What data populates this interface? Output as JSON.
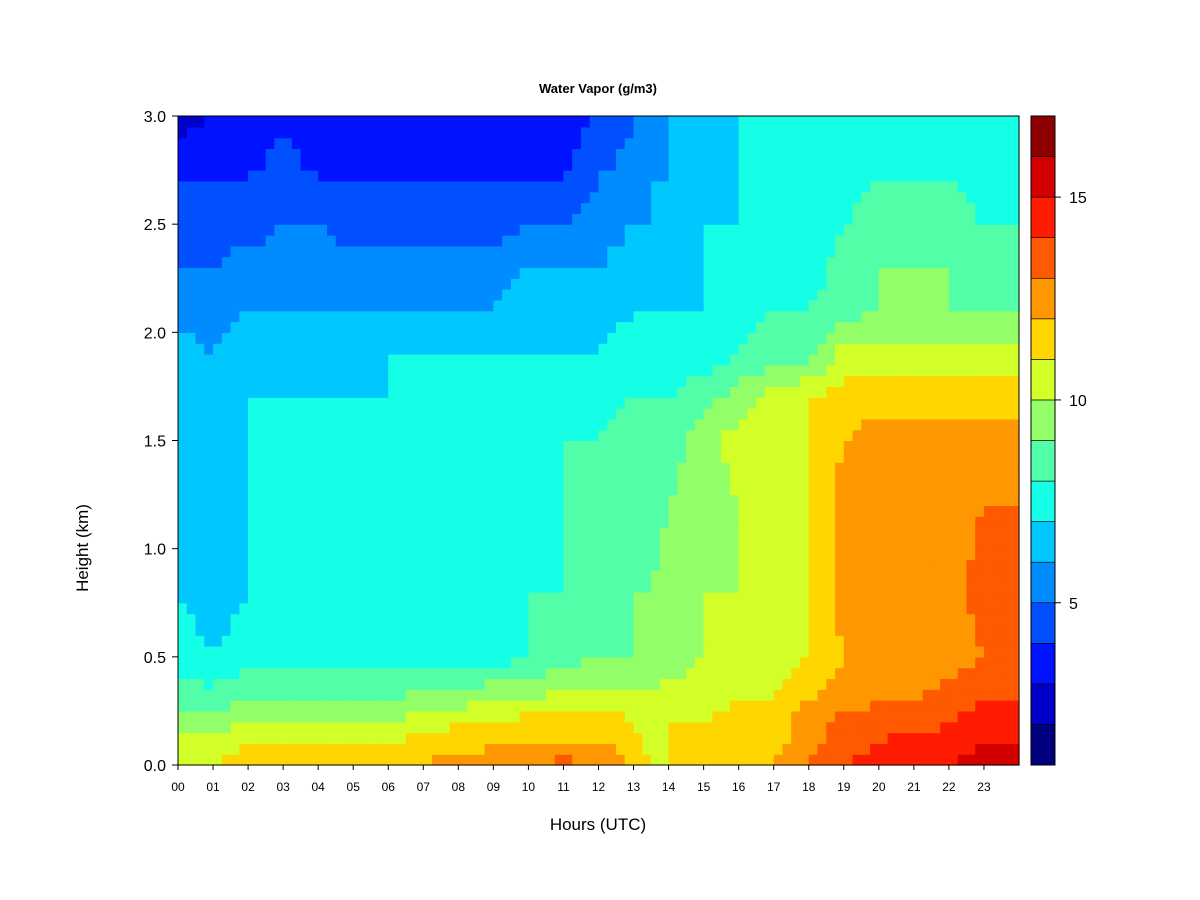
{
  "chart_data": {
    "type": "heatmap",
    "title": "Water Vapor (g/m3)",
    "xlabel": "Hours (UTC)",
    "ylabel": "Height (km)",
    "x_ticks": [
      "00",
      "01",
      "02",
      "03",
      "04",
      "05",
      "06",
      "07",
      "08",
      "09",
      "10",
      "11",
      "12",
      "13",
      "14",
      "15",
      "16",
      "17",
      "18",
      "19",
      "20",
      "21",
      "22",
      "23"
    ],
    "y_ticks": [
      "0.0",
      "0.5",
      "1.0",
      "1.5",
      "2.0",
      "2.5",
      "3.0"
    ],
    "xlim": [
      0,
      24
    ],
    "ylim": [
      0,
      3
    ],
    "colorbar": {
      "range": [
        1,
        17
      ],
      "levels": [
        1,
        2,
        3,
        4,
        5,
        6,
        7,
        8,
        9,
        10,
        11,
        12,
        13,
        14,
        15,
        16,
        17
      ],
      "tick_labels": [
        "5",
        "10",
        "15"
      ],
      "tick_values": [
        5,
        10,
        15
      ],
      "colors": [
        "#00007f",
        "#0000c8",
        "#0012ff",
        "#0050ff",
        "#008cff",
        "#00c8ff",
        "#14ffe6",
        "#52ffa8",
        "#92ff68",
        "#d2ff28",
        "#ffd600",
        "#ff9800",
        "#ff5a00",
        "#ff1c00",
        "#d40000",
        "#8c0000"
      ]
    },
    "heights_km": [
      0.0,
      0.1,
      0.2,
      0.3,
      0.5,
      0.8,
      1.2,
      1.5,
      1.7,
      1.9,
      2.1,
      2.3,
      2.5,
      2.7,
      2.9,
      3.0
    ],
    "hours": [
      0,
      1,
      2,
      3,
      4,
      5,
      6,
      7,
      8,
      9,
      10,
      11,
      12,
      13,
      13.5,
      14,
      15,
      16,
      17,
      18,
      19,
      20,
      21,
      22,
      23,
      24
    ],
    "values": [
      [
        11.0,
        11.0,
        11.5,
        11.5,
        11.5,
        11.5,
        11.5,
        12.0,
        12.5,
        12.5,
        13.0,
        13.5,
        13.0,
        12.0,
        11.0,
        11.0,
        11.5,
        11.5,
        12.0,
        13.0,
        14.0,
        14.5,
        14.5,
        15.0,
        15.5,
        15.5
      ],
      [
        10.5,
        10.5,
        11.0,
        11.0,
        11.0,
        11.0,
        11.0,
        11.5,
        11.5,
        12.0,
        12.0,
        12.0,
        12.0,
        11.5,
        10.5,
        11.0,
        11.0,
        11.5,
        11.5,
        12.5,
        13.5,
        14.0,
        14.5,
        14.5,
        15.0,
        15.0
      ],
      [
        9.5,
        9.5,
        10.0,
        10.0,
        10.0,
        10.0,
        10.0,
        10.5,
        11.0,
        11.0,
        11.5,
        11.5,
        11.5,
        11.0,
        10.5,
        11.0,
        11.0,
        11.5,
        11.5,
        12.5,
        13.5,
        13.5,
        13.5,
        14.0,
        14.5,
        14.5
      ],
      [
        8.5,
        8.5,
        9.0,
        9.0,
        9.0,
        9.0,
        9.0,
        9.5,
        9.5,
        10.0,
        10.0,
        10.5,
        10.5,
        10.5,
        10.0,
        10.5,
        10.5,
        11.0,
        11.0,
        12.0,
        12.5,
        13.0,
        13.0,
        13.5,
        14.0,
        14.0
      ],
      [
        7.5,
        7.0,
        7.5,
        7.5,
        7.5,
        7.5,
        7.5,
        7.5,
        7.5,
        7.5,
        8.0,
        8.5,
        9.0,
        9.0,
        9.5,
        9.5,
        10.0,
        10.5,
        10.5,
        11.0,
        12.0,
        12.0,
        12.0,
        12.5,
        13.0,
        13.0
      ],
      [
        7.0,
        6.5,
        7.0,
        7.0,
        7.0,
        7.0,
        7.0,
        7.0,
        7.0,
        7.0,
        8.0,
        8.0,
        8.5,
        9.0,
        9.0,
        9.5,
        10.0,
        10.0,
        10.5,
        11.0,
        12.5,
        12.5,
        12.5,
        12.5,
        13.5,
        13.5
      ],
      [
        7.0,
        6.5,
        7.0,
        7.0,
        7.0,
        7.0,
        7.0,
        7.0,
        7.0,
        7.0,
        7.5,
        8.0,
        8.5,
        8.5,
        8.5,
        9.0,
        9.5,
        10.0,
        10.5,
        11.0,
        12.5,
        12.5,
        12.5,
        12.5,
        13.0,
        13.0
      ],
      [
        7.0,
        6.5,
        7.0,
        7.0,
        7.0,
        7.0,
        7.0,
        7.0,
        7.0,
        7.5,
        8.0,
        8.0,
        8.0,
        8.5,
        8.5,
        8.5,
        9.5,
        10.5,
        11.0,
        11.0,
        12.0,
        12.5,
        12.5,
        12.5,
        12.5,
        12.5
      ],
      [
        7.0,
        6.5,
        7.0,
        7.0,
        7.0,
        7.0,
        7.0,
        7.0,
        7.0,
        7.0,
        7.5,
        7.5,
        7.5,
        8.0,
        8.0,
        8.0,
        8.5,
        9.5,
        10.5,
        11.0,
        11.5,
        11.5,
        11.5,
        11.5,
        11.5,
        11.5
      ],
      [
        6.5,
        6.0,
        6.5,
        6.5,
        6.5,
        6.5,
        7.0,
        7.0,
        7.0,
        7.0,
        7.0,
        7.0,
        7.0,
        7.5,
        7.5,
        7.5,
        7.5,
        8.0,
        8.5,
        8.5,
        10.5,
        10.5,
        10.5,
        10.5,
        10.5,
        10.5
      ],
      [
        5.5,
        5.5,
        6.0,
        6.0,
        6.0,
        6.0,
        6.0,
        6.0,
        6.0,
        6.0,
        6.5,
        6.5,
        6.5,
        7.0,
        7.0,
        7.0,
        7.0,
        7.5,
        8.0,
        8.0,
        8.5,
        9.0,
        9.0,
        9.0,
        9.0,
        9.0
      ],
      [
        5.0,
        5.0,
        5.5,
        5.5,
        5.5,
        5.5,
        5.5,
        5.5,
        5.5,
        5.5,
        6.0,
        6.0,
        6.0,
        6.5,
        6.5,
        6.5,
        7.0,
        7.5,
        7.5,
        7.5,
        8.5,
        9.0,
        9.0,
        9.0,
        8.5,
        8.5
      ],
      [
        4.5,
        4.5,
        4.5,
        5.0,
        5.0,
        4.5,
        4.5,
        4.5,
        4.5,
        4.5,
        5.0,
        5.0,
        5.5,
        6.0,
        6.0,
        6.5,
        7.0,
        7.0,
        7.0,
        7.0,
        8.0,
        8.5,
        8.5,
        8.5,
        8.0,
        8.0
      ],
      [
        4.0,
        4.0,
        4.0,
        4.5,
        4.0,
        4.0,
        4.0,
        4.0,
        4.0,
        4.0,
        4.0,
        4.0,
        5.0,
        5.5,
        6.0,
        6.0,
        6.5,
        7.0,
        7.0,
        7.0,
        7.5,
        8.0,
        8.0,
        8.0,
        7.5,
        7.5
      ],
      [
        3.0,
        3.5,
        3.5,
        4.0,
        3.5,
        3.5,
        3.5,
        3.5,
        3.5,
        3.5,
        3.5,
        3.5,
        4.5,
        5.0,
        5.5,
        6.0,
        6.5,
        7.0,
        7.0,
        7.0,
        7.5,
        7.5,
        7.5,
        7.5,
        7.5,
        7.5
      ],
      [
        2.5,
        3.0,
        3.5,
        4.0,
        3.5,
        3.5,
        3.5,
        3.5,
        3.0,
        3.0,
        3.0,
        3.0,
        4.5,
        5.0,
        5.5,
        6.0,
        6.5,
        7.0,
        7.0,
        7.0,
        7.5,
        7.5,
        7.5,
        7.5,
        7.5,
        7.5
      ]
    ]
  }
}
